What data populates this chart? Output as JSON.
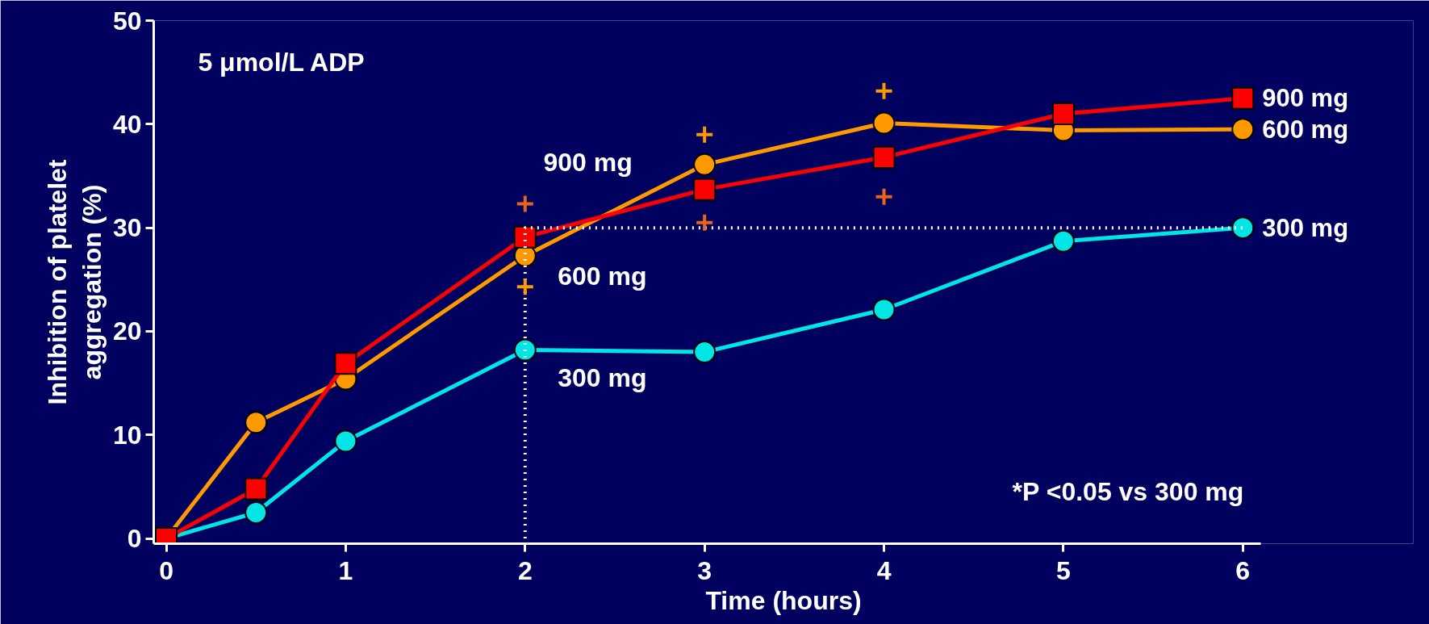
{
  "chart_data": {
    "type": "line",
    "xlabel": "Time (hours)",
    "ylabel": "Inhibition of platelet\naggregation (%)",
    "xlim": [
      -0.07,
      6.1
    ],
    "ylim": [
      -0.5,
      50
    ],
    "xticks": [
      0,
      1,
      2,
      3,
      4,
      5,
      6
    ],
    "yticks": [
      0,
      10,
      20,
      30,
      40,
      50
    ],
    "series": [
      {
        "x": [
          2,
          2,
          6
        ],
        "values": [
          0,
          30,
          30
        ],
        "color": "#ffffff",
        "line_style": "dotted",
        "marker": "none"
      },
      {
        "name": "300 mg",
        "x": [
          0,
          0.5,
          1,
          2,
          3,
          4,
          5,
          6
        ],
        "values": [
          0,
          2.5,
          9.4,
          18.2,
          18.0,
          22.1,
          28.7,
          30.0
        ],
        "color": "#00e5e5",
        "marker": "circle"
      },
      {
        "name": "600 mg",
        "x": [
          0,
          0.5,
          1,
          2,
          3,
          4,
          5,
          6
        ],
        "values": [
          0,
          11.2,
          15.4,
          27.3,
          36.1,
          40.1,
          39.4,
          39.5
        ],
        "color": "#ff9900",
        "marker": "circle"
      },
      {
        "name": "900 mg",
        "x": [
          0,
          0.5,
          1,
          2,
          3,
          4,
          5,
          6
        ],
        "values": [
          0,
          4.8,
          16.9,
          29.1,
          33.7,
          36.8,
          41.0,
          42.5
        ],
        "color": "#ff0000",
        "marker": "square"
      },
      {
        "type": "scatter",
        "x": [
          2,
          3,
          4
        ],
        "values": [
          24.3,
          39.0,
          43.2
        ],
        "color": "#ff9900",
        "marker": "cross"
      },
      {
        "type": "scatter",
        "x": [
          2,
          3,
          4
        ],
        "values": [
          32.3,
          30.5,
          33.0
        ],
        "color": "#e8641e",
        "marker": "cross"
      }
    ],
    "annotations": [
      "5 μmol/L ADP",
      "*P <0.05 vs 300 mg",
      "900 mg",
      "600 mg",
      "300 mg"
    ]
  }
}
